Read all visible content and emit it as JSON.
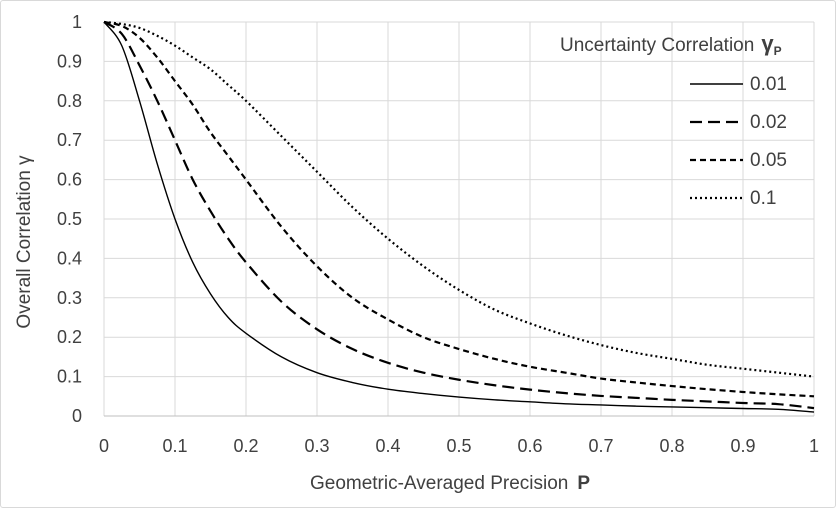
{
  "chart_data": {
    "type": "line",
    "title": "",
    "xlabel": "Geometric-Averaged Precision",
    "xlabel_symbol": "P",
    "ylabel": "Overall Correlation γ",
    "xlim": [
      0,
      1
    ],
    "ylim": [
      0,
      1
    ],
    "x_ticks": [
      "0",
      "0.1",
      "0.2",
      "0.3",
      "0.4",
      "0.5",
      "0.6",
      "0.7",
      "0.8",
      "0.9",
      "1"
    ],
    "y_ticks": [
      "0",
      "0.1",
      "0.2",
      "0.3",
      "0.4",
      "0.5",
      "0.6",
      "0.7",
      "0.8",
      "0.9",
      "1"
    ],
    "grid": true,
    "legend": {
      "title": "Uncertainty Correlation",
      "title_symbol": "γ",
      "title_subscript": "P",
      "placement": "top-right"
    },
    "x": [
      0,
      0.025,
      0.05,
      0.075,
      0.1,
      0.125,
      0.15,
      0.175,
      0.2,
      0.25,
      0.3,
      0.35,
      0.4,
      0.45,
      0.5,
      0.55,
      0.6,
      0.65,
      0.7,
      0.75,
      0.8,
      0.85,
      0.9,
      0.95,
      1
    ],
    "series": [
      {
        "name": "0.01",
        "style": "solid",
        "values": [
          1,
          0.94,
          0.8,
          0.64,
          0.5,
          0.39,
          0.31,
          0.25,
          0.21,
          0.15,
          0.11,
          0.085,
          0.068,
          0.057,
          0.048,
          0.041,
          0.036,
          0.031,
          0.028,
          0.025,
          0.023,
          0.021,
          0.019,
          0.017,
          0.01
        ]
      },
      {
        "name": "0.02",
        "style": "long-dash",
        "values": [
          1,
          0.97,
          0.89,
          0.8,
          0.7,
          0.6,
          0.52,
          0.45,
          0.39,
          0.29,
          0.22,
          0.17,
          0.135,
          0.11,
          0.092,
          0.078,
          0.067,
          0.058,
          0.051,
          0.046,
          0.041,
          0.037,
          0.033,
          0.03,
          0.02
        ]
      },
      {
        "name": "0.05",
        "style": "short-dash",
        "values": [
          1,
          0.99,
          0.96,
          0.91,
          0.85,
          0.79,
          0.72,
          0.66,
          0.6,
          0.48,
          0.38,
          0.3,
          0.245,
          0.2,
          0.17,
          0.145,
          0.125,
          0.11,
          0.095,
          0.085,
          0.076,
          0.068,
          0.061,
          0.055,
          0.05
        ]
      },
      {
        "name": "0.1",
        "style": "dotted",
        "values": [
          1,
          0.995,
          0.985,
          0.965,
          0.94,
          0.91,
          0.88,
          0.84,
          0.8,
          0.71,
          0.62,
          0.53,
          0.45,
          0.38,
          0.32,
          0.27,
          0.235,
          0.205,
          0.18,
          0.16,
          0.145,
          0.13,
          0.12,
          0.11,
          0.1
        ]
      }
    ]
  }
}
